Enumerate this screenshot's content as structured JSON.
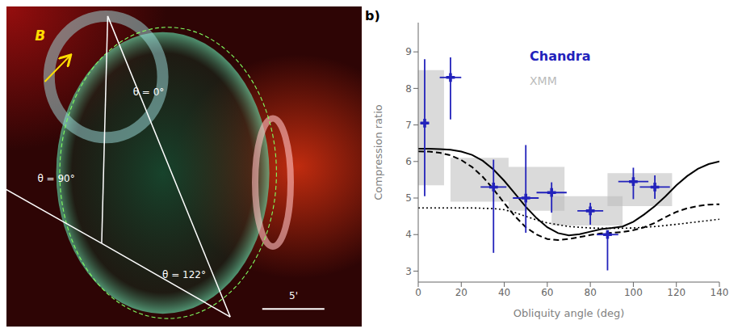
{
  "chart_data": {
    "type": "line",
    "xlabel": "Obliquity angle (deg)",
    "ylabel": "Compression ratio",
    "xlim": [
      0,
      140
    ],
    "ylim": [
      2.7,
      9.8
    ],
    "xticks": [
      0,
      20,
      40,
      60,
      80,
      100,
      120,
      140
    ],
    "yticks": [
      3,
      4,
      5,
      6,
      7,
      8,
      9
    ],
    "grid": false,
    "annotations": [
      "θ = 0°",
      "θ = 90°",
      "θ = 122°",
      "B",
      "5'",
      "b)"
    ],
    "series": [
      {
        "name": "XMM",
        "type": "box",
        "color": "#bbbbbb",
        "boxes": [
          {
            "x_lo": 0,
            "x_hi": 12,
            "y_lo": 5.35,
            "y_hi": 8.5
          },
          {
            "x_lo": 15,
            "x_hi": 42,
            "y_lo": 4.9,
            "y_hi": 6.1
          },
          {
            "x_lo": 42,
            "x_hi": 68,
            "y_lo": 4.65,
            "y_hi": 5.85
          },
          {
            "x_lo": 62,
            "x_hi": 95,
            "y_lo": 4.25,
            "y_hi": 5.05
          },
          {
            "x_lo": 88,
            "x_hi": 118,
            "y_lo": 4.78,
            "y_hi": 5.68
          }
        ]
      },
      {
        "type": "line",
        "color": "#000000",
        "line_style": "solid",
        "x": [
          0,
          5,
          10,
          15,
          20,
          25,
          30,
          35,
          40,
          45,
          50,
          55,
          60,
          65,
          70,
          75,
          80,
          85,
          90,
          95,
          100,
          105,
          110,
          115,
          120,
          125,
          130,
          135,
          140
        ],
        "values": [
          6.35,
          6.35,
          6.34,
          6.32,
          6.27,
          6.18,
          6.02,
          5.78,
          5.47,
          5.12,
          4.76,
          4.45,
          4.2,
          4.04,
          3.98,
          4.01,
          4.08,
          4.15,
          4.18,
          4.22,
          4.35,
          4.55,
          4.78,
          5.05,
          5.35,
          5.6,
          5.8,
          5.93,
          6.0
        ]
      },
      {
        "type": "line",
        "color": "#000000",
        "line_style": "dashed",
        "x": [
          0,
          5,
          10,
          15,
          20,
          25,
          30,
          35,
          40,
          45,
          50,
          55,
          60,
          65,
          70,
          75,
          80,
          85,
          90,
          95,
          100,
          105,
          110,
          115,
          120,
          125,
          130,
          135,
          140
        ],
        "values": [
          6.28,
          6.27,
          6.24,
          6.17,
          6.04,
          5.85,
          5.58,
          5.24,
          4.86,
          4.5,
          4.2,
          4.0,
          3.88,
          3.85,
          3.88,
          3.93,
          3.99,
          4.03,
          4.05,
          4.07,
          4.12,
          4.2,
          4.32,
          4.48,
          4.62,
          4.72,
          4.78,
          4.82,
          4.83
        ]
      },
      {
        "type": "line",
        "color": "#000000",
        "line_style": "dotted",
        "x": [
          0,
          5,
          10,
          15,
          20,
          25,
          30,
          35,
          40,
          45,
          50,
          55,
          60,
          70,
          80,
          90,
          100,
          110,
          120,
          130,
          140
        ],
        "values": [
          4.73,
          4.73,
          4.73,
          4.73,
          4.73,
          4.73,
          4.72,
          4.71,
          4.68,
          4.6,
          4.5,
          4.4,
          4.32,
          4.22,
          4.18,
          4.17,
          4.18,
          4.22,
          4.28,
          4.35,
          4.42
        ]
      },
      {
        "name": "Chandra",
        "type": "scatter",
        "color": "#2222bb",
        "marker": "plus",
        "x": [
          3,
          15,
          35,
          50,
          62,
          80,
          88,
          100,
          110
        ],
        "values": [
          7.05,
          8.3,
          5.3,
          5.0,
          5.15,
          4.65,
          4.0,
          5.45,
          5.3
        ],
        "xerr": [
          2,
          5,
          6,
          6,
          7,
          6,
          5,
          7,
          7
        ],
        "yerr_lo": [
          2.0,
          1.15,
          1.8,
          0.95,
          0.55,
          0.38,
          0.98,
          0.48,
          0.32
        ],
        "yerr_hi": [
          1.75,
          0.55,
          0.75,
          1.45,
          0.28,
          0.22,
          0.0,
          0.38,
          0.32
        ]
      }
    ]
  }
}
